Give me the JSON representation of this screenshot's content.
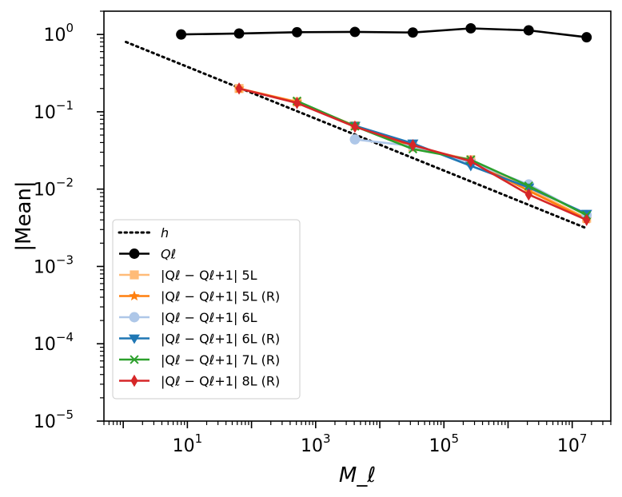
{
  "chart_data": {
    "type": "line",
    "xscale": "log",
    "yscale": "log",
    "xlabel": "M_ℓ",
    "ylabel": "|Mean|",
    "xlim": [
      0.5,
      40000000
    ],
    "ylim": [
      1e-05,
      2.0
    ],
    "xticks": [
      {
        "value": 10,
        "base": "10",
        "exp": "1"
      },
      {
        "value": 1000,
        "base": "10",
        "exp": "3"
      },
      {
        "value": 100000,
        "base": "10",
        "exp": "5"
      },
      {
        "value": 10000000,
        "base": "10",
        "exp": "7"
      }
    ],
    "yticks": [
      {
        "value": 1,
        "base": "10",
        "exp": "0"
      },
      {
        "value": 0.1,
        "base": "10",
        "exp": "−1"
      },
      {
        "value": 0.01,
        "base": "10",
        "exp": "−2"
      },
      {
        "value": 0.001,
        "base": "10",
        "exp": "−3"
      },
      {
        "value": 0.0001,
        "base": "10",
        "exp": "−4"
      },
      {
        "value": 1e-05,
        "base": "10",
        "exp": "−5"
      }
    ],
    "series": [
      {
        "key": "h",
        "name": "h",
        "color": "#000000",
        "style": "dotted",
        "marker": "none",
        "x": [
          1.1,
          17000000
        ],
        "y": [
          0.8,
          0.0031
        ]
      },
      {
        "key": "q",
        "name": "Q_ℓ",
        "color": "#000000",
        "style": "solid",
        "marker": "circle",
        "x": [
          8,
          64,
          512,
          4096,
          32768,
          262144,
          2097152,
          16777216
        ],
        "y": [
          1.0,
          1.03,
          1.07,
          1.08,
          1.06,
          1.2,
          1.13,
          0.92
        ]
      },
      {
        "key": "5l",
        "name": "|Q_ℓ − Q_ℓ+1| 5L",
        "color": "#ffbb78",
        "style": "solid",
        "marker": "square",
        "x": [
          64,
          512,
          4096,
          32768,
          262144,
          2097152,
          16777216
        ],
        "y": [
          0.2,
          0.135,
          0.066,
          0.035,
          0.024,
          0.01,
          0.0042
        ]
      },
      {
        "key": "5lr",
        "name": "|Q_ℓ − Q_ℓ+1| 5L (R)",
        "color": "#ff7f0e",
        "style": "solid",
        "marker": "star",
        "x": [
          64,
          512,
          4096,
          32768,
          262144,
          2097152,
          16777216
        ],
        "y": [
          0.2,
          0.133,
          0.066,
          0.036,
          0.023,
          0.0095,
          0.0041
        ]
      },
      {
        "key": "6l",
        "name": "|Q_ℓ − Q_ℓ+1| 6L",
        "color": "#aec7e8",
        "style": "solid",
        "marker": "circle",
        "x": [
          4096,
          32768,
          262144,
          2097152,
          16777216
        ],
        "y": [
          0.044,
          0.036,
          0.022,
          0.0115,
          0.0046
        ]
      },
      {
        "key": "6lr",
        "name": "|Q_ℓ − Q_ℓ+1| 6L (R)",
        "color": "#1f77b4",
        "style": "solid",
        "marker": "triangle-down",
        "x": [
          4096,
          32768,
          262144,
          2097152,
          16777216
        ],
        "y": [
          0.066,
          0.039,
          0.02,
          0.0105,
          0.0048
        ]
      },
      {
        "key": "7lr",
        "name": "|Q_ℓ − Q_ℓ+1| 7L (R)",
        "color": "#2ca02c",
        "style": "solid",
        "marker": "x",
        "x": [
          512,
          4096,
          32768,
          262144,
          2097152,
          16777216
        ],
        "y": [
          0.138,
          0.065,
          0.033,
          0.024,
          0.011,
          0.0046
        ]
      },
      {
        "key": "8lr",
        "name": "|Q_ℓ − Q_ℓ+1| 8L (R)",
        "color": "#d62728",
        "style": "solid",
        "marker": "diamond",
        "x": [
          64,
          512,
          4096,
          32768,
          262144,
          2097152,
          16777216
        ],
        "y": [
          0.2,
          0.13,
          0.064,
          0.037,
          0.023,
          0.0085,
          0.004
        ]
      }
    ],
    "legend": {
      "position": "lower-left",
      "entries": [
        {
          "key": "h",
          "label": "h"
        },
        {
          "key": "q",
          "label": "Qℓ"
        },
        {
          "key": "5l",
          "label": "|Qℓ − Qℓ+1| 5L"
        },
        {
          "key": "5lr",
          "label": "|Qℓ − Qℓ+1| 5L (R)"
        },
        {
          "key": "6l",
          "label": "|Qℓ − Qℓ+1| 6L"
        },
        {
          "key": "6lr",
          "label": "|Qℓ − Qℓ+1| 6L (R)"
        },
        {
          "key": "7lr",
          "label": "|Qℓ − Qℓ+1| 7L (R)"
        },
        {
          "key": "8lr",
          "label": "|Qℓ − Qℓ+1| 8L (R)"
        }
      ]
    },
    "grid": false
  }
}
